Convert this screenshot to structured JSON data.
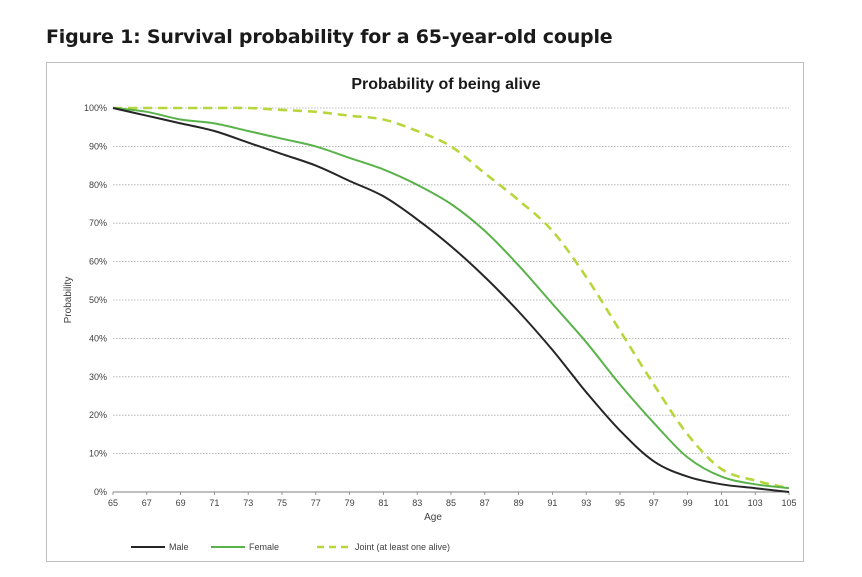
{
  "figure_title": "Figure 1: Survival probability for a 65-year-old couple",
  "chart_data": {
    "type": "line",
    "title": "Probability of being alive",
    "xlabel": "Age",
    "ylabel": "Probability",
    "xlim": [
      65,
      105
    ],
    "ylim": [
      0,
      100
    ],
    "x_ticks": [
      "65",
      "67",
      "69",
      "71",
      "73",
      "75",
      "77",
      "79",
      "81",
      "83",
      "85",
      "87",
      "89",
      "91",
      "93",
      "95",
      "97",
      "99",
      "101",
      "103",
      "105"
    ],
    "y_ticks": [
      "0%",
      "10%",
      "20%",
      "30%",
      "40%",
      "50%",
      "60%",
      "70%",
      "80%",
      "90%",
      "100%"
    ],
    "grid": true,
    "legend_position": "bottom",
    "series": [
      {
        "name": "Male",
        "color": "#262626",
        "dash": "solid",
        "x": [
          65,
          67,
          69,
          71,
          73,
          75,
          77,
          79,
          81,
          83,
          85,
          87,
          89,
          91,
          93,
          95,
          97,
          99,
          101,
          103,
          105
        ],
        "y": [
          100,
          98,
          96,
          94,
          91,
          88,
          85,
          81,
          77,
          71,
          64,
          56,
          47,
          37,
          26,
          16,
          8,
          4,
          2,
          1,
          0
        ]
      },
      {
        "name": "Female",
        "color": "#5ab34a",
        "dash": "solid",
        "x": [
          65,
          67,
          69,
          71,
          73,
          75,
          77,
          79,
          81,
          83,
          85,
          87,
          89,
          91,
          93,
          95,
          97,
          99,
          101,
          103,
          105
        ],
        "y": [
          100,
          99,
          97,
          96,
          94,
          92,
          90,
          87,
          84,
          80,
          75,
          68,
          59,
          49,
          39,
          28,
          18,
          9,
          4,
          2,
          1
        ]
      },
      {
        "name": "Joint (at least one alive)",
        "color": "#b7d63c",
        "dash": "dashed",
        "x": [
          65,
          67,
          69,
          71,
          73,
          75,
          77,
          79,
          81,
          83,
          85,
          87,
          89,
          91,
          93,
          95,
          97,
          99,
          101,
          103,
          105
        ],
        "y": [
          100,
          100,
          100,
          100,
          100,
          99.5,
          99,
          98,
          97,
          94,
          90,
          83,
          76,
          68,
          56,
          42,
          28,
          15,
          6,
          3,
          1
        ]
      }
    ]
  }
}
